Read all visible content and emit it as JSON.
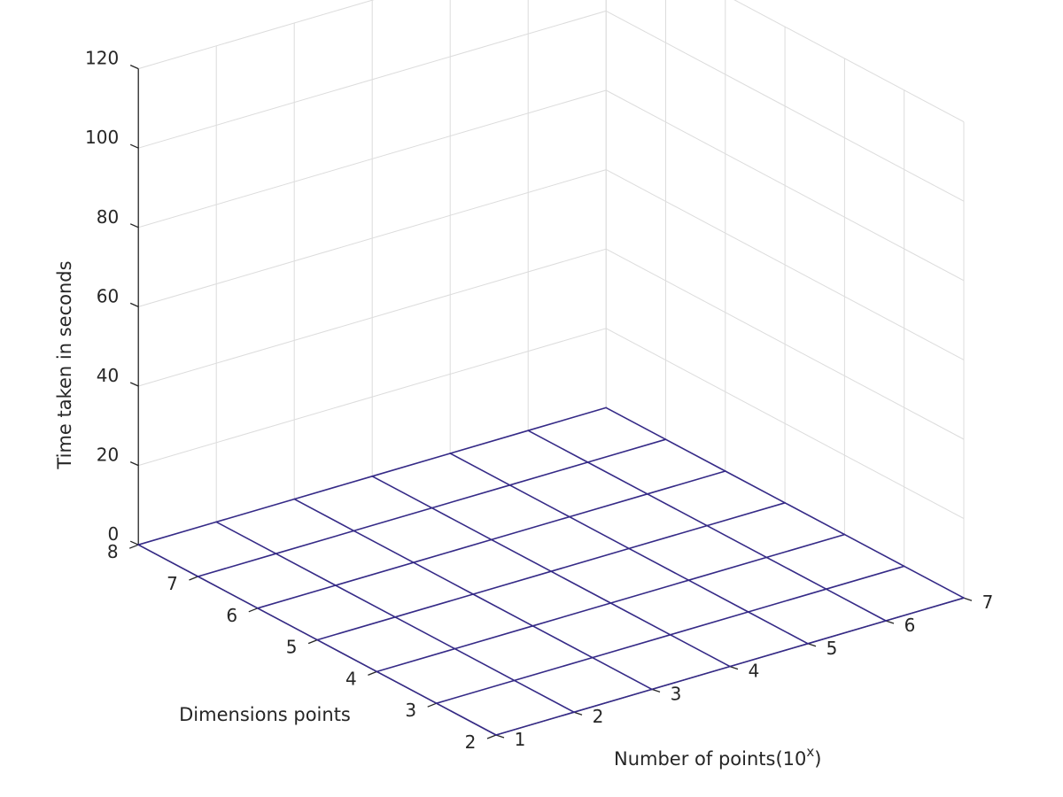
{
  "chart_data": {
    "type": "surface",
    "title": "",
    "xlabel": "Number of points(10",
    "xlabel_superscript": "x",
    "xlabel_close": ")",
    "ylabel": "Dimensions points",
    "zlabel": "Time taken in seconds",
    "x": [
      1,
      2,
      3,
      4,
      5,
      6,
      7
    ],
    "y": [
      2,
      3,
      4,
      5,
      6,
      7,
      8
    ],
    "xlim": [
      1,
      7
    ],
    "ylim": [
      2,
      8
    ],
    "zlim": [
      0,
      120
    ],
    "x_ticks": [
      "1",
      "2",
      "3",
      "4",
      "5",
      "6",
      "7"
    ],
    "y_ticks": [
      "2",
      "3",
      "4",
      "5",
      "6",
      "7",
      "8"
    ],
    "z_ticks": [
      "0",
      "20",
      "40",
      "60",
      "80",
      "100",
      "120"
    ],
    "grid": true,
    "z": [
      [
        0,
        0,
        0,
        0,
        0,
        0,
        0
      ],
      [
        0,
        0,
        0,
        0,
        0,
        0,
        0
      ],
      [
        0,
        0,
        0,
        0,
        0,
        0,
        0
      ],
      [
        0,
        0,
        0,
        0,
        0,
        0,
        0
      ],
      [
        0,
        0,
        0,
        0,
        0,
        0,
        0
      ],
      [
        0,
        0,
        0,
        0,
        0,
        0,
        0
      ],
      [
        0,
        0,
        0,
        0,
        0,
        0,
        0
      ]
    ],
    "colormap": [
      "#352a87",
      "#0f5cdd",
      "#1481d6",
      "#06a4ca",
      "#2eb7a4",
      "#87bf77",
      "#d1bb59",
      "#fec832",
      "#f9fb0e"
    ]
  }
}
